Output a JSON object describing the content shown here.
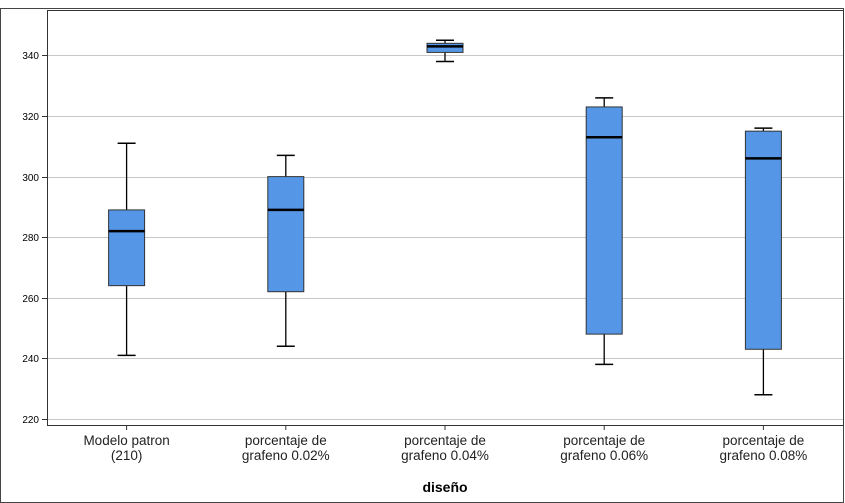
{
  "chart_data": {
    "type": "boxplot",
    "xlabel": "diseño",
    "ylabel": "",
    "ylim": [
      218,
      355
    ],
    "yticks": [
      220,
      240,
      260,
      280,
      300,
      320,
      340
    ],
    "grid": true,
    "colors": {
      "box_fill": "#5597e6",
      "box_stroke": "#333333",
      "median": "#000000",
      "grid": "#c8c8c8"
    },
    "categories": [
      {
        "label_lines": [
          "Modelo patron",
          "(210)"
        ]
      },
      {
        "label_lines": [
          "porcentaje de",
          "grafeno 0.02%"
        ]
      },
      {
        "label_lines": [
          "porcentaje de",
          "grafeno 0.04%"
        ]
      },
      {
        "label_lines": [
          "porcentaje de",
          "grafeno 0.06%"
        ]
      },
      {
        "label_lines": [
          "porcentaje de",
          "grafeno 0.08%"
        ]
      }
    ],
    "boxes": [
      {
        "min": 241,
        "q1": 264,
        "median": 282,
        "q3": 289,
        "max": 311
      },
      {
        "min": 244,
        "q1": 262,
        "median": 289,
        "q3": 300,
        "max": 307
      },
      {
        "min": 338,
        "q1": 341,
        "median": 343,
        "q3": 344,
        "max": 345
      },
      {
        "min": 238,
        "q1": 248,
        "median": 313,
        "q3": 323,
        "max": 326
      },
      {
        "min": 228,
        "q1": 243,
        "median": 306,
        "q3": 315,
        "max": 316
      }
    ]
  }
}
